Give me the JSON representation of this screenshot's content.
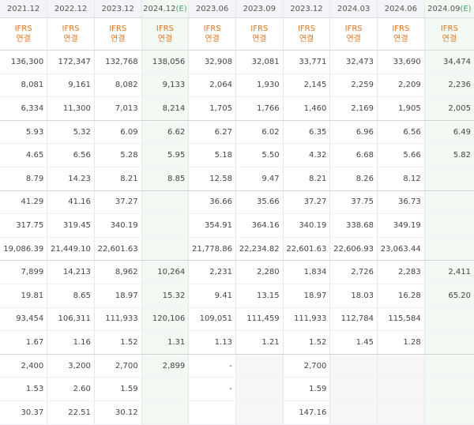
{
  "columns": [
    {
      "period": "2021.12",
      "suffix": ""
    },
    {
      "period": "2022.12",
      "suffix": ""
    },
    {
      "period": "2023.12",
      "suffix": ""
    },
    {
      "period": "2024.12",
      "suffix": "(E)"
    },
    {
      "period": "2023.06",
      "suffix": ""
    },
    {
      "period": "2023.09",
      "suffix": ""
    },
    {
      "period": "2023.12",
      "suffix": ""
    },
    {
      "period": "2024.03",
      "suffix": ""
    },
    {
      "period": "2024.06",
      "suffix": ""
    },
    {
      "period": "2024.09",
      "suffix": "(E)"
    }
  ],
  "ifrs_label": "IFRS",
  "consolidated_label": "연결",
  "rows": [
    [
      "136,300",
      "172,347",
      "132,768",
      "138,056",
      "32,908",
      "32,081",
      "33,771",
      "32,473",
      "33,690",
      "34,474"
    ],
    [
      "8,081",
      "9,161",
      "8,082",
      "9,133",
      "2,064",
      "1,930",
      "2,145",
      "2,259",
      "2,209",
      "2,236"
    ],
    [
      "6,334",
      "11,300",
      "7,013",
      "8,214",
      "1,705",
      "1,766",
      "1,460",
      "2,169",
      "1,905",
      "2,005"
    ],
    [
      "5.93",
      "5.32",
      "6.09",
      "6.62",
      "6.27",
      "6.02",
      "6.35",
      "6.96",
      "6.56",
      "6.49"
    ],
    [
      "4.65",
      "6.56",
      "5.28",
      "5.95",
      "5.18",
      "5.50",
      "4.32",
      "6.68",
      "5.66",
      "5.82"
    ],
    [
      "8.79",
      "14.23",
      "8.21",
      "8.85",
      "12.58",
      "9.47",
      "8.21",
      "8.26",
      "8.12",
      ""
    ],
    [
      "41.29",
      "41.16",
      "37.27",
      "",
      "36.66",
      "35.66",
      "37.27",
      "37.75",
      "36.73",
      ""
    ],
    [
      "317.75",
      "319.45",
      "340.19",
      "",
      "354.91",
      "364.16",
      "340.19",
      "338.68",
      "349.19",
      ""
    ],
    [
      "19,086.39",
      "21,449.10",
      "22,601.63",
      "",
      "21,778.86",
      "22,234.82",
      "22,601.63",
      "22,606.93",
      "23,063.44",
      ""
    ],
    [
      "7,899",
      "14,213",
      "8,962",
      "10,264",
      "2,231",
      "2,280",
      "1,834",
      "2,726",
      "2,283",
      "2,411"
    ],
    [
      "19.81",
      "8.65",
      "18.97",
      "15.32",
      "9.41",
      "13.15",
      "18.97",
      "18.03",
      "16.28",
      "65.20"
    ],
    [
      "93,454",
      "106,311",
      "111,933",
      "120,106",
      "109,051",
      "111,459",
      "111,933",
      "112,784",
      "115,584",
      ""
    ],
    [
      "1.67",
      "1.16",
      "1.52",
      "1.31",
      "1.13",
      "1.21",
      "1.52",
      "1.45",
      "1.28",
      ""
    ],
    [
      "2,400",
      "3,200",
      "2,700",
      "2,899",
      "-",
      "",
      "2,700",
      "",
      "",
      ""
    ],
    [
      "1.53",
      "2.60",
      "1.59",
      "",
      "-",
      "",
      "1.59",
      "",
      "",
      ""
    ],
    [
      "30.37",
      "22.51",
      "30.12",
      "",
      "",
      "",
      "147.16",
      "",
      "",
      ""
    ]
  ],
  "separators_after": [
    2,
    5,
    8,
    12
  ],
  "grey_cells": [
    [
      13,
      5
    ],
    [
      14,
      5
    ],
    [
      15,
      5
    ],
    [
      13,
      7
    ],
    [
      14,
      7
    ],
    [
      15,
      7
    ],
    [
      13,
      8
    ],
    [
      14,
      8
    ],
    [
      15,
      8
    ]
  ]
}
